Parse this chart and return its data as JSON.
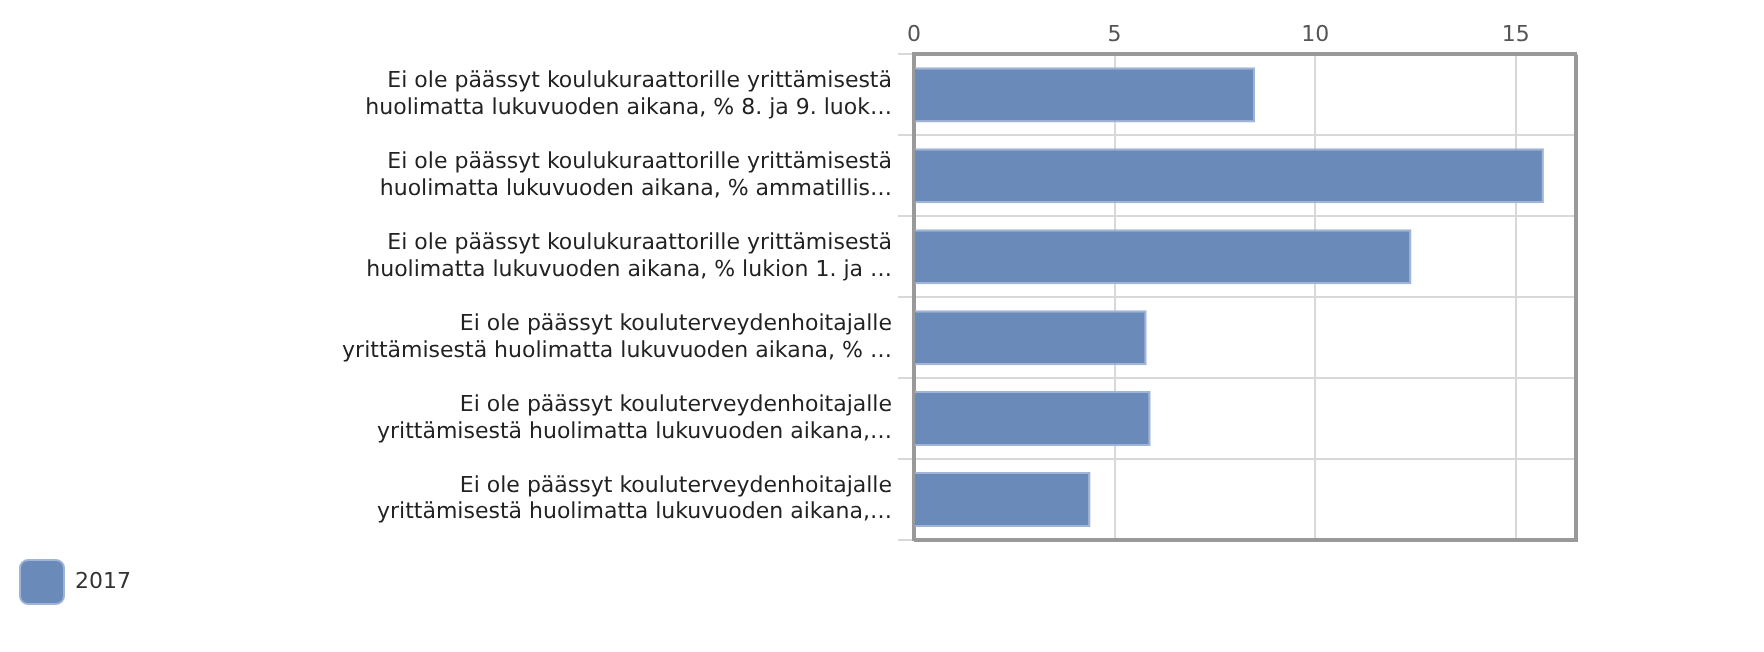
{
  "chart_data": {
    "type": "bar",
    "orientation": "horizontal",
    "categories": [
      "Ei ole päässyt koulukuraattorille yrittämisestä huolimatta lukuvuoden aikana, % 8. ja 9. luok…",
      "Ei ole päässyt koulukuraattorille yrittämisestä huolimatta lukuvuoden aikana, % ammatillis…",
      "Ei ole päässyt koulukuraattorille yrittämisestä huolimatta lukuvuoden aikana, % lukion 1. ja …",
      "Ei ole päässyt kouluterveydenhoitajalle yrittämisestä huolimatta lukuvuoden aikana, % …",
      "Ei ole päässyt kouluterveydenhoitajalle yrittämisestä huolimatta lukuvuoden aikana,…",
      "Ei ole päässyt kouluterveydenhoitajalle yrittämisestä huolimatta lukuvuoden aikana,…"
    ],
    "series": [
      {
        "name": "2017",
        "color": "#6a8ab9",
        "values": [
          8.5,
          15.7,
          12.4,
          5.8,
          5.9,
          4.4
        ]
      }
    ],
    "xlim": [
      0,
      16.5
    ],
    "xticks": [
      0,
      5,
      10,
      15
    ],
    "grid": true,
    "legend": "bottom left"
  }
}
